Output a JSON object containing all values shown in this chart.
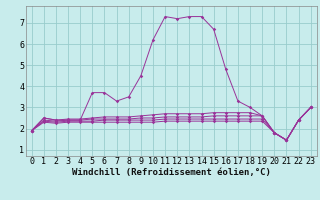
{
  "title": "",
  "xlabel": "Windchill (Refroidissement éolien,°C)",
  "background_color": "#c8ecec",
  "grid_color": "#99cccc",
  "line_color": "#993399",
  "xlim": [
    -0.5,
    23.5
  ],
  "ylim": [
    0.7,
    7.8
  ],
  "xticks": [
    0,
    1,
    2,
    3,
    4,
    5,
    6,
    7,
    8,
    9,
    10,
    11,
    12,
    13,
    14,
    15,
    16,
    17,
    18,
    19,
    20,
    21,
    22,
    23
  ],
  "yticks": [
    1,
    2,
    3,
    4,
    5,
    6,
    7
  ],
  "series": [
    [
      1.9,
      2.5,
      2.4,
      2.4,
      2.4,
      3.7,
      3.7,
      3.3,
      3.5,
      4.5,
      6.2,
      7.3,
      7.2,
      7.3,
      7.3,
      6.7,
      4.8,
      3.3,
      3.0,
      2.6,
      1.8,
      1.45,
      2.4,
      3.0
    ],
    [
      1.9,
      2.5,
      2.4,
      2.45,
      2.45,
      2.5,
      2.55,
      2.55,
      2.55,
      2.6,
      2.65,
      2.7,
      2.7,
      2.7,
      2.7,
      2.75,
      2.75,
      2.75,
      2.75,
      2.6,
      1.8,
      1.45,
      2.4,
      3.0
    ],
    [
      1.9,
      2.4,
      2.35,
      2.4,
      2.4,
      2.45,
      2.45,
      2.45,
      2.45,
      2.5,
      2.5,
      2.55,
      2.55,
      2.55,
      2.55,
      2.6,
      2.6,
      2.6,
      2.6,
      2.6,
      1.8,
      1.45,
      2.4,
      3.0
    ],
    [
      1.9,
      2.35,
      2.3,
      2.35,
      2.35,
      2.35,
      2.4,
      2.4,
      2.4,
      2.4,
      2.4,
      2.45,
      2.45,
      2.45,
      2.45,
      2.45,
      2.45,
      2.45,
      2.45,
      2.45,
      1.8,
      1.45,
      2.4,
      3.0
    ],
    [
      1.9,
      2.3,
      2.25,
      2.3,
      2.3,
      2.3,
      2.3,
      2.3,
      2.3,
      2.3,
      2.3,
      2.35,
      2.35,
      2.35,
      2.35,
      2.35,
      2.35,
      2.35,
      2.35,
      2.35,
      1.8,
      1.45,
      2.4,
      3.0
    ]
  ],
  "markersize": 1.8,
  "linewidth": 0.7,
  "xlabel_fontsize": 6.5,
  "tick_fontsize": 6
}
